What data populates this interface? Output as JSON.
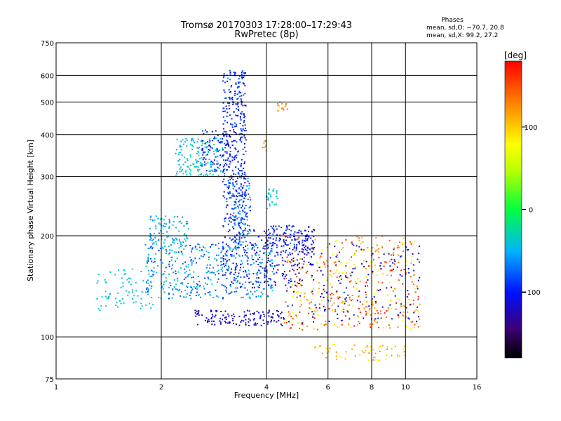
{
  "chart_data": {
    "type": "scatter",
    "title": "Tromsø 20170303 17:28:00–17:29:43",
    "subtitle": "RwPretec (8p)",
    "xlabel": "Frequency [MHz]",
    "ylabel": "Stationary phase Virtual Height [km]",
    "x_scale": "log",
    "y_scale": "log",
    "xlim": [
      1,
      16
    ],
    "ylim": [
      75,
      750
    ],
    "x_ticks": [
      1,
      2,
      4,
      6,
      8,
      10,
      16
    ],
    "x_tick_labels": [
      "1",
      "2",
      "4",
      "6",
      "8",
      "10",
      "16"
    ],
    "y_ticks": [
      75,
      100,
      200,
      300,
      400,
      500,
      600,
      750
    ],
    "y_tick_labels": [
      "75",
      "100",
      "200",
      "300",
      "400",
      "500",
      "600",
      "750"
    ],
    "grid": true,
    "phases_box": {
      "title": "Phases",
      "line_o": "mean, sd,O: −70.7, 20.8",
      "line_x": "mean, sd,X:  99.2, 27.2"
    },
    "colorbar": {
      "label": "[deg]",
      "range": [
        -180,
        180
      ],
      "ticks": [
        100,
        0,
        -100
      ],
      "tick_labels": [
        "100",
        "0",
        "−100"
      ]
    },
    "clusters": [
      {
        "x": [
          1.3,
          1.9
        ],
        "y": [
          120,
          160
        ],
        "n": 80,
        "phase": [
          -50,
          -25
        ]
      },
      {
        "x": [
          1.85,
          2.4
        ],
        "y": [
          190,
          230
        ],
        "n": 90,
        "phase": [
          -70,
          -30
        ]
      },
      {
        "x": [
          2.2,
          3.0
        ],
        "y": [
          300,
          390
        ],
        "n": 160,
        "phase": [
          -60,
          -20
        ]
      },
      {
        "x": [
          2.6,
          3.1
        ],
        "y": [
          310,
          420
        ],
        "n": 70,
        "phase": [
          -110,
          -80
        ]
      },
      {
        "x": [
          3.0,
          3.5
        ],
        "y": [
          210,
          620
        ],
        "n": 360,
        "phase": [
          -120,
          -70
        ]
      },
      {
        "x": [
          3.2,
          3.6
        ],
        "y": [
          180,
          300
        ],
        "n": 120,
        "phase": [
          -100,
          -50
        ]
      },
      {
        "x": [
          1.8,
          4.2
        ],
        "y": [
          130,
          190
        ],
        "n": 450,
        "phase": [
          -90,
          -30
        ]
      },
      {
        "x": [
          3.0,
          5.5
        ],
        "y": [
          140,
          210
        ],
        "n": 230,
        "phase": [
          -130,
          -90
        ]
      },
      {
        "x": [
          2.5,
          4.5
        ],
        "y": [
          108,
          120
        ],
        "n": 130,
        "phase": [
          -130,
          -100
        ]
      },
      {
        "x": [
          4.0,
          5.5
        ],
        "y": [
          175,
          215
        ],
        "n": 110,
        "phase": [
          -120,
          -80
        ]
      },
      {
        "x": [
          4.5,
          11.0
        ],
        "y": [
          105,
          200
        ],
        "n": 420,
        "phase": [
          60,
          180
        ]
      },
      {
        "x": [
          4.5,
          11.0
        ],
        "y": [
          110,
          190
        ],
        "n": 160,
        "phase": [
          -140,
          -90
        ]
      },
      {
        "x": [
          5.5,
          10.0
        ],
        "y": [
          85,
          95
        ],
        "n": 60,
        "phase": [
          70,
          140
        ]
      },
      {
        "x": [
          4.3,
          4.6
        ],
        "y": [
          470,
          500
        ],
        "n": 14,
        "phase": [
          110,
          140
        ]
      },
      {
        "x": [
          3.9,
          4.0
        ],
        "y": [
          355,
          385
        ],
        "n": 10,
        "phase": [
          110,
          130
        ]
      },
      {
        "x": [
          4.0,
          4.3
        ],
        "y": [
          240,
          280
        ],
        "n": 25,
        "phase": [
          -60,
          -20
        ]
      }
    ]
  }
}
